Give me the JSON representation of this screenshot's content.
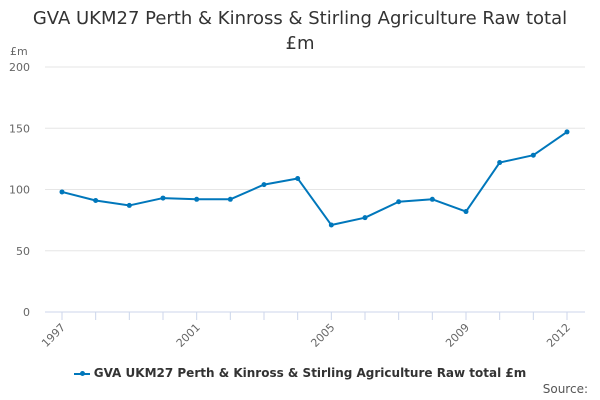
{
  "chart_data": {
    "type": "line",
    "title": "GVA UKM27 Perth & Kinross & Stirling Agriculture Raw total £m",
    "xlabel": "",
    "ylabel": "£m",
    "ylim": [
      0,
      200
    ],
    "yticks": [
      0,
      50,
      100,
      150,
      200
    ],
    "x": [
      1997,
      1998,
      1999,
      2000,
      2001,
      2002,
      2003,
      2004,
      2005,
      2006,
      2007,
      2008,
      2009,
      2010,
      2011,
      2012
    ],
    "xtick_labels": [
      "1997",
      "2001",
      "2005",
      "2009",
      "2012"
    ],
    "grid": true,
    "legend_position": "bottom",
    "series": [
      {
        "name": "GVA UKM27 Perth & Kinross & Stirling Agriculture Raw total £m",
        "color": "#0077bb",
        "values": [
          98,
          91,
          87,
          93,
          92,
          92,
          104,
          109,
          71,
          77,
          90,
          92,
          82,
          122,
          128,
          147
        ]
      }
    ]
  },
  "title_line1": "GVA UKM27 Perth & Kinross & Stirling Agriculture Raw total",
  "title_line2": "£m",
  "y_unit": "£m",
  "legend_label": "GVA UKM27 Perth & Kinross & Stirling Agriculture Raw total £m",
  "source_label": "Source:"
}
